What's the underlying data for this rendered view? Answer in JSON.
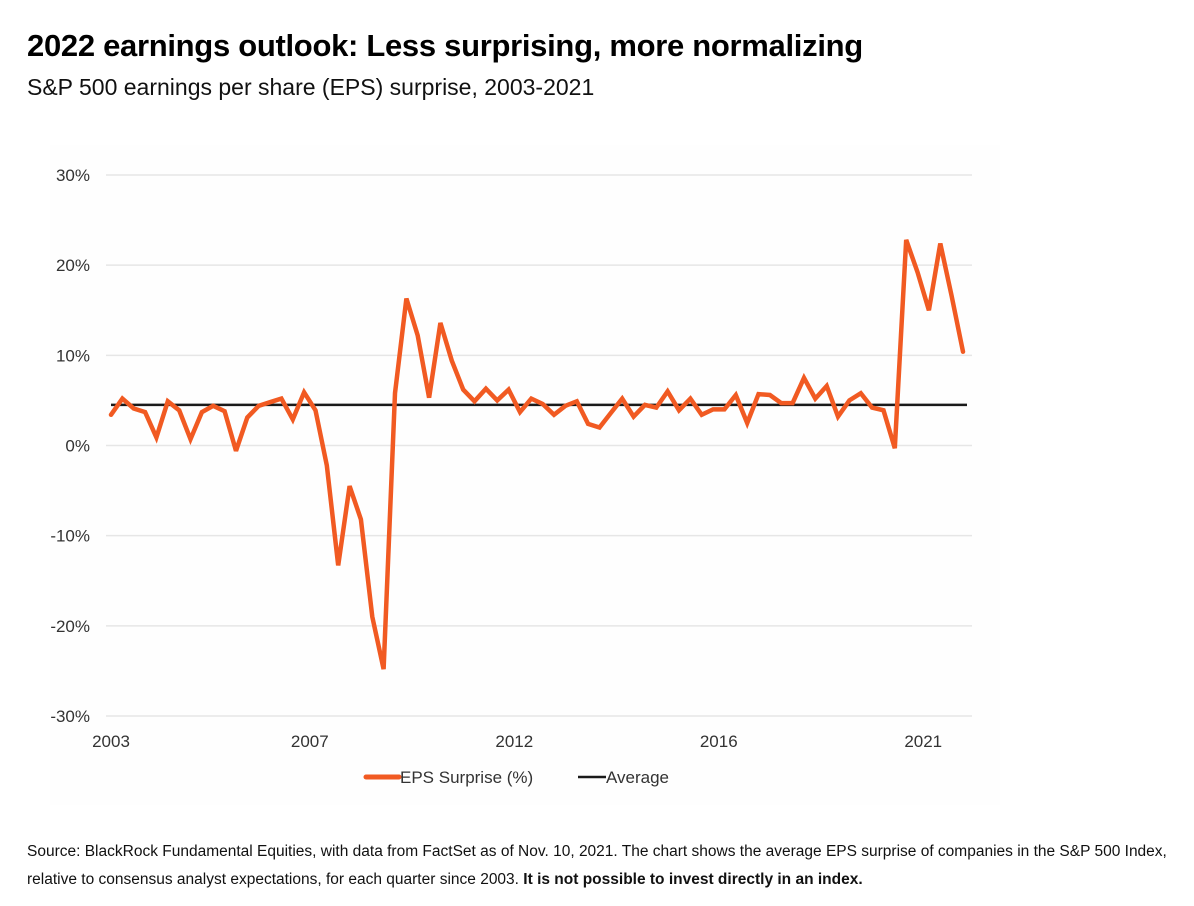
{
  "header": {
    "title": "2022 earnings outlook: Less surprising, more normalizing",
    "subtitle": "S&P 500 earnings per share (EPS) surprise, 2003-2021"
  },
  "footer": {
    "source_text": "Source: BlackRock Fundamental Equities, with data from FactSet as of Nov. 10, 2021. The chart shows the average EPS surprise of companies in the S&P 500 Index, relative to consensus analyst expectations, for each quarter since 2003. ",
    "disclaimer": "It is not possible to invest directly in an index."
  },
  "colors": {
    "eps_line": "#f15a22",
    "average_line": "#1a1a1a",
    "gridline": "#e6e6e6"
  },
  "chart_data": {
    "type": "line",
    "title": "S&P 500 earnings per share (EPS) surprise, 2003-2021",
    "xlabel": "",
    "ylabel": "",
    "ylim": [
      -30,
      30
    ],
    "yticks": [
      30,
      20,
      10,
      0,
      -10,
      -20,
      -30
    ],
    "ytick_labels": [
      "30%",
      "20%",
      "10%",
      "0%",
      "-10%",
      "-20%",
      "-30%"
    ],
    "xtick_labels": [
      {
        "label": "2003",
        "index": 0
      },
      {
        "label": "2007",
        "index": 17.5
      },
      {
        "label": "2012",
        "index": 35.5
      },
      {
        "label": "2016",
        "index": 53.5
      },
      {
        "label": "2021",
        "index": 71.5
      }
    ],
    "grid": true,
    "legend_position": "bottom-center",
    "x_period": "quarterly, 2003 Q1 to 2021 Q3",
    "series": [
      {
        "name": "EPS Surprise (%)",
        "color": "#f15a22",
        "values": [
          3.4,
          5.2,
          4.1,
          3.7,
          0.9,
          4.9,
          3.9,
          0.7,
          3.7,
          4.4,
          3.8,
          -0.6,
          3.1,
          4.4,
          4.8,
          5.2,
          2.9,
          5.9,
          3.9,
          -2.2,
          -13.3,
          -4.5,
          -8.2,
          -19.0,
          -24.8,
          5.8,
          16.3,
          12.2,
          5.3,
          13.6,
          9.4,
          6.2,
          4.9,
          6.3,
          5.0,
          6.2,
          3.7,
          5.2,
          4.6,
          3.4,
          4.4,
          4.9,
          2.4,
          2.0,
          3.6,
          5.2,
          3.2,
          4.5,
          4.2,
          6.0,
          3.9,
          5.2,
          3.4,
          4.0,
          4.0,
          5.6,
          2.5,
          5.7,
          5.6,
          4.7,
          4.7,
          7.5,
          5.2,
          6.6,
          3.2,
          5.0,
          5.8,
          4.2,
          3.9,
          -0.3,
          22.8,
          19.2,
          15.0,
          22.4,
          16.6,
          10.4
        ]
      },
      {
        "name": "Average",
        "color": "#1a1a1a",
        "constant": 4.5
      }
    ]
  }
}
